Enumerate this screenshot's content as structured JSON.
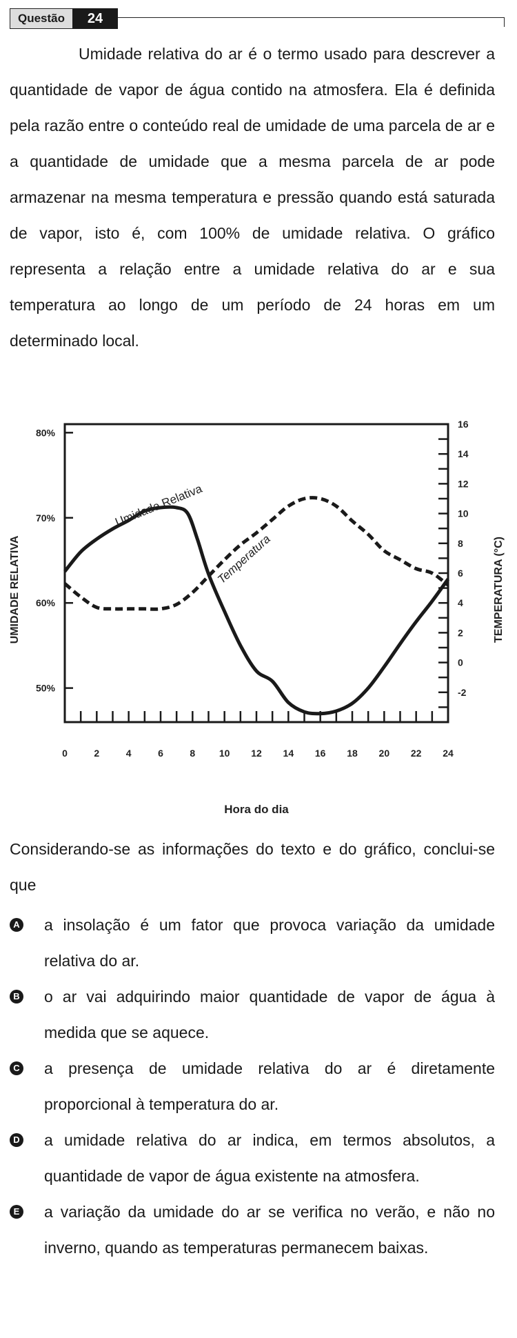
{
  "header": {
    "label": "Questão",
    "number": "24"
  },
  "paragraph": "Umidade relativa do ar é o termo usado para descrever a quantidade de vapor de água contido na atmosfera. Ela é definida pela razão entre o conteúdo real de umidade de uma parcela de ar e a quantidade de umidade que a mesma parcela de ar pode armazenar na mesma temperatura e pressão quando está saturada de vapor, isto é, com 100% de umidade relativa. O gráfico representa a relação entre a umidade relativa do ar e sua temperatura ao longo de um período de 24 horas em um determinado local.",
  "chart_data": {
    "type": "line",
    "xlabel": "Hora do dia",
    "ylabel_left": "UMIDADE RELATIVA",
    "ylabel_right": "TEMPERATURA (°C)",
    "x_ticks": [
      "0",
      "2",
      "4",
      "6",
      "8",
      "10",
      "12",
      "14",
      "16",
      "18",
      "20",
      "22",
      "24"
    ],
    "y_left_ticks": [
      "50%",
      "60%",
      "70%",
      "80%"
    ],
    "y_right_ticks": [
      "-2",
      "0",
      "2",
      "4",
      "6",
      "8",
      "10",
      "12",
      "14",
      "16"
    ],
    "xlim": [
      0,
      24
    ],
    "ylim_left": [
      46,
      81
    ],
    "ylim_right": [
      -4,
      16
    ],
    "grid": false,
    "series": [
      {
        "name": "Umidade Relativa",
        "axis": "left",
        "style": "solid",
        "x": [
          0,
          1,
          2,
          3,
          4,
          5,
          6,
          7,
          7.7,
          8.3,
          9,
          10,
          11,
          12,
          13,
          14,
          15,
          16,
          17,
          18,
          19,
          20,
          21,
          22,
          23,
          24
        ],
        "y": [
          63.7,
          66,
          67.5,
          68.7,
          69.7,
          70.8,
          71.2,
          71.2,
          70.5,
          67.5,
          63.4,
          59,
          55,
          52,
          50.8,
          48.3,
          47.2,
          47,
          47.3,
          48.2,
          50,
          52.5,
          55.2,
          57.8,
          60.2,
          62.8
        ]
      },
      {
        "name": "Temperatura",
        "axis": "right",
        "style": "dashed",
        "x": [
          0,
          1,
          2,
          3,
          4,
          5,
          6,
          7,
          8,
          9,
          10,
          11,
          12,
          13,
          14,
          15,
          16,
          17,
          18,
          19,
          20,
          21,
          22,
          23,
          24
        ],
        "y": [
          5.3,
          4.4,
          3.7,
          3.6,
          3.6,
          3.6,
          3.6,
          3.9,
          4.7,
          5.8,
          6.9,
          7.9,
          8.7,
          9.6,
          10.5,
          11,
          11,
          10.5,
          9.5,
          8.6,
          7.5,
          6.9,
          6.3,
          6,
          5.2
        ]
      }
    ]
  },
  "prompt": "Considerando-se as informações do texto e do gráfico, conclui-se que",
  "options": [
    {
      "letter": "A",
      "text": "a insolação é um fator que provoca variação da umidade relativa do ar."
    },
    {
      "letter": "B",
      "text": "o ar vai adquirindo maior quantidade de vapor de água à medida que se aquece."
    },
    {
      "letter": "C",
      "text": "a presença de umidade relativa do ar é diretamente proporcional à temperatura do ar."
    },
    {
      "letter": "D",
      "text": "a umidade relativa do ar indica, em termos absolutos, a quantidade de vapor de água existente na atmosfera."
    },
    {
      "letter": "E",
      "text": "a variação da umidade do ar se verifica no verão, e não no inverno, quando as temperaturas permanecem baixas."
    }
  ]
}
